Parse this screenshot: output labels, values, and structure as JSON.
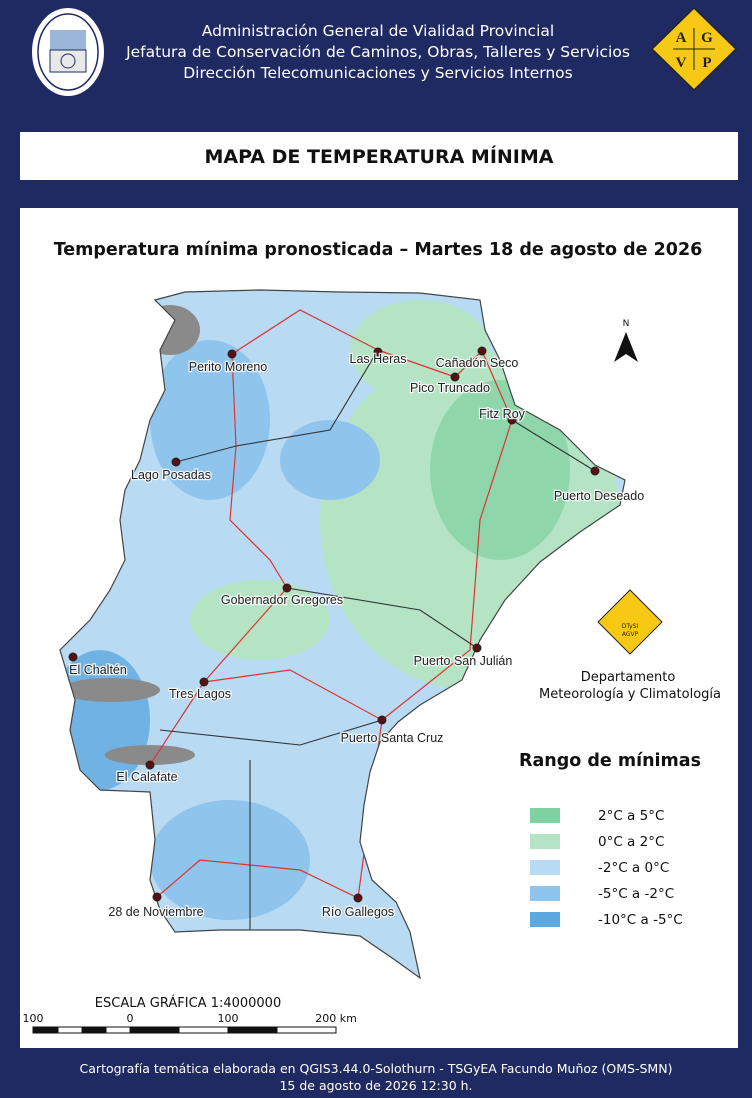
{
  "header": {
    "lines": [
      "Administración General de Vialidad Provincial",
      "Jefatura de Conservación de Caminos, Obras, Talleres y Servicios",
      "Dirección Telecomunicaciones y Servicios Internos"
    ],
    "logo_letters": [
      "A",
      "G",
      "V",
      "P"
    ],
    "title": "MAPA DE TEMPERATURA MÍNIMA"
  },
  "map": {
    "subtitle": "Temperatura mínima pronosticada – Martes 18 de agosto de 2026",
    "north": "N",
    "towns": [
      "Perito Moreno",
      "Las Heras",
      "Cañadón Seco",
      "Pico Truncado",
      "Fitz Roy",
      "Lago Posadas",
      "Puerto Deseado",
      "Gobernador Gregores",
      "Puerto San Julián",
      "El Chaltén",
      "Tres Lagos",
      "Puerto Santa Cruz",
      "El Calafate",
      "28 de Noviembre",
      "Río Gallegos"
    ],
    "department": {
      "logo_lines": [
        "DTySI",
        "AGVP"
      ],
      "lines": [
        "Departamento",
        "Meteorología y Climatología"
      ]
    },
    "legend": {
      "title": "Rango de mínimas",
      "items": [
        {
          "label": "2°C a 5°C",
          "color": "#7fd1a1"
        },
        {
          "label": "0°C a 2°C",
          "color": "#b4e4c4"
        },
        {
          "label": "-2°C a 0°C",
          "color": "#b8daf2"
        },
        {
          "label": "-5°C a -2°C",
          "color": "#8fc4ec"
        },
        {
          "label": "-10°C a -5°C",
          "color": "#5ea8e0"
        }
      ]
    },
    "scale": {
      "title": "ESCALA GRÁFICA 1:4000000",
      "labels": [
        "100",
        "0",
        "100",
        "200 km"
      ]
    }
  },
  "footer": {
    "lines": [
      "Cartografía temática elaborada en QGIS3.44.0-Solothurn - TSGyEA Facundo Muñoz (OMS-SMN)",
      "15 de agosto de 2026 12:30 h."
    ]
  }
}
